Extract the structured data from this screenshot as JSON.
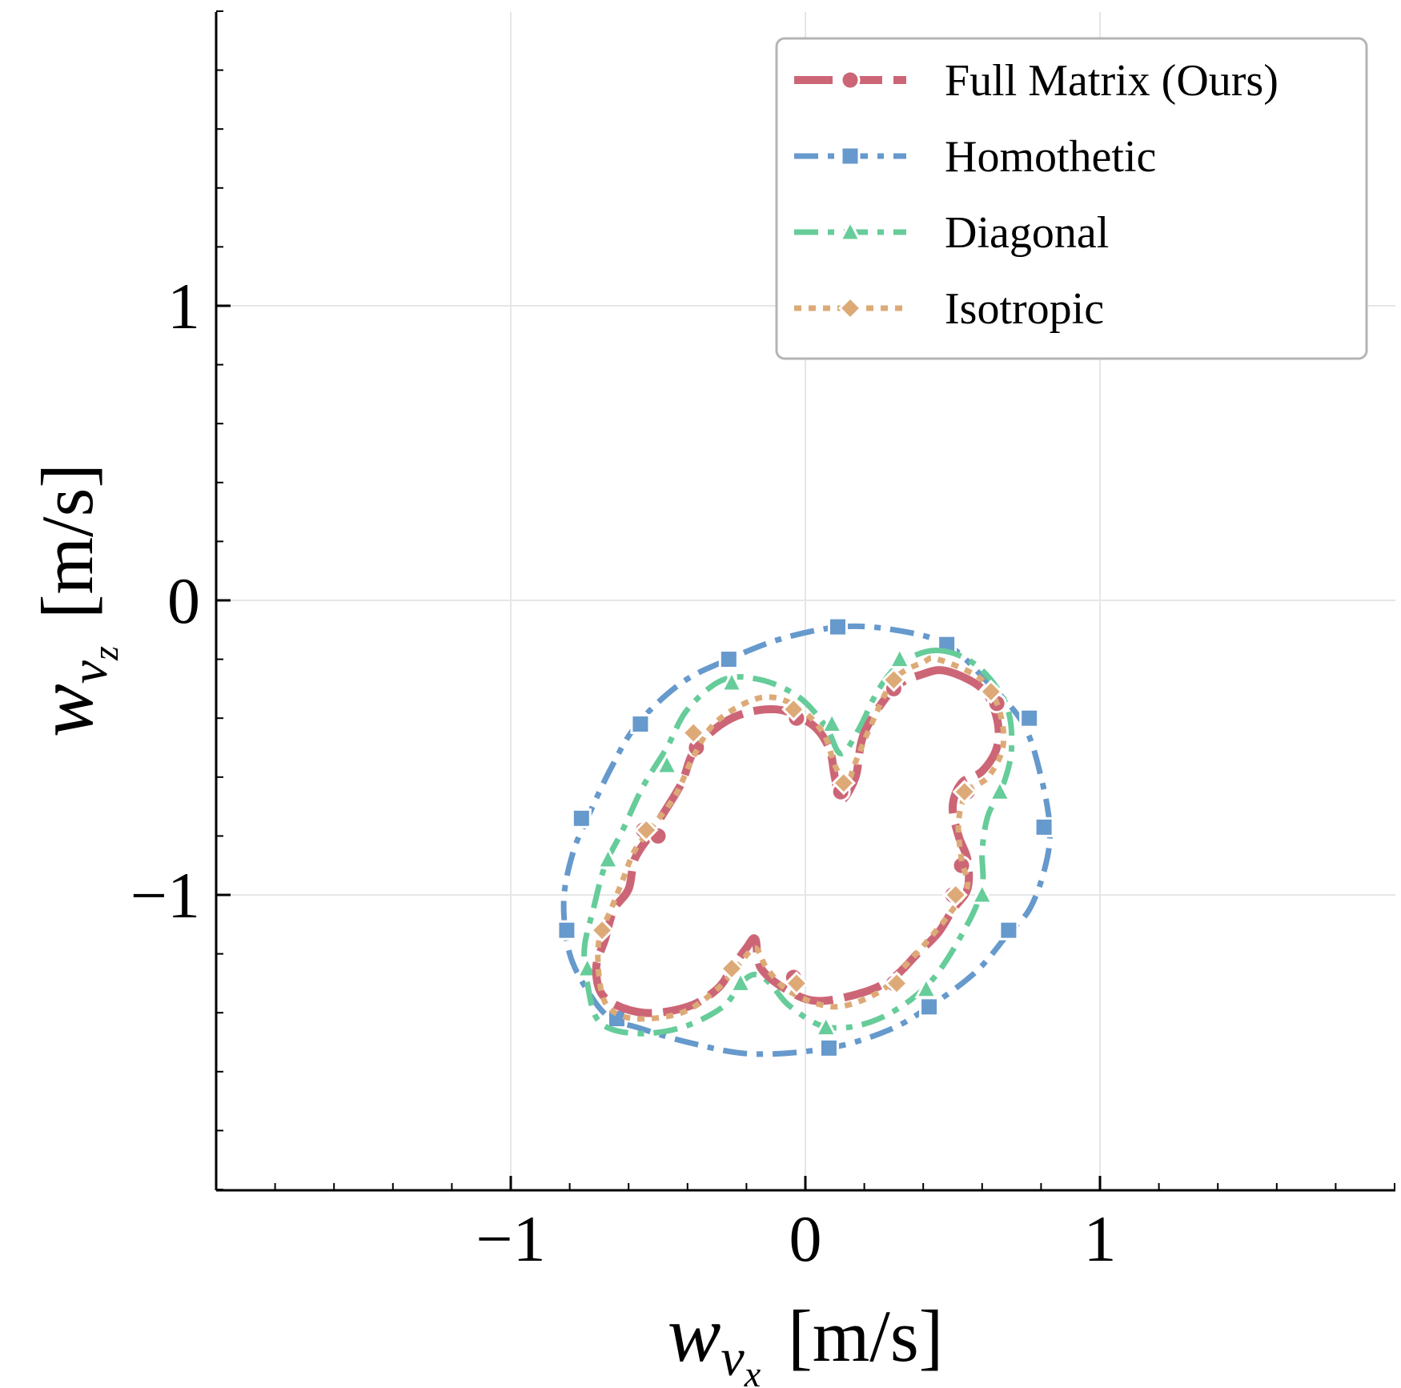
{
  "chart_data": {
    "type": "line",
    "title": "",
    "xlabel": {
      "symbol": "w",
      "sub": "v",
      "subsub": "x",
      "unit": "[m/s]"
    },
    "ylabel": {
      "symbol": "w",
      "sub": "v",
      "subsub": "z",
      "unit": "[m/s]"
    },
    "xlim": [
      -2.0,
      2.0
    ],
    "ylim": [
      -2.0,
      2.0
    ],
    "xticks": [
      -1,
      0,
      1
    ],
    "yticks": [
      -1,
      0,
      1
    ],
    "xtick_labels": [
      "−1",
      "0",
      "1"
    ],
    "ytick_labels": [
      "−1",
      "0",
      "1"
    ],
    "minor_step": 0.2,
    "grid": true,
    "legend_position": "top-right",
    "series": [
      {
        "name": "Full Matrix (Ours)",
        "color": "#cc6677",
        "dash": "long-dash",
        "marker": "circle",
        "points": [
          [
            0.48,
            -0.24
          ],
          [
            0.6,
            -0.3
          ],
          [
            0.65,
            -0.4
          ],
          [
            0.65,
            -0.5
          ],
          [
            0.6,
            -0.58
          ],
          [
            0.53,
            -0.62
          ],
          [
            0.5,
            -0.7
          ],
          [
            0.52,
            -0.8
          ],
          [
            0.55,
            -0.88
          ],
          [
            0.55,
            -0.98
          ],
          [
            0.5,
            -1.05
          ],
          [
            0.45,
            -1.13
          ],
          [
            0.38,
            -1.2
          ],
          [
            0.3,
            -1.28
          ],
          [
            0.2,
            -1.33
          ],
          [
            0.05,
            -1.36
          ],
          [
            -0.05,
            -1.33
          ],
          [
            -0.15,
            -1.25
          ],
          [
            -0.17,
            -1.15
          ],
          [
            -0.2,
            -1.18
          ],
          [
            -0.25,
            -1.25
          ],
          [
            -0.3,
            -1.32
          ],
          [
            -0.4,
            -1.38
          ],
          [
            -0.55,
            -1.4
          ],
          [
            -0.68,
            -1.35
          ],
          [
            -0.71,
            -1.25
          ],
          [
            -0.68,
            -1.15
          ],
          [
            -0.65,
            -1.05
          ],
          [
            -0.6,
            -0.98
          ],
          [
            -0.58,
            -0.88
          ],
          [
            -0.53,
            -0.8
          ],
          [
            -0.48,
            -0.72
          ],
          [
            -0.42,
            -0.62
          ],
          [
            -0.37,
            -0.5
          ],
          [
            -0.25,
            -0.4
          ],
          [
            -0.1,
            -0.37
          ],
          [
            0.02,
            -0.42
          ],
          [
            0.08,
            -0.5
          ],
          [
            0.1,
            -0.6
          ],
          [
            0.12,
            -0.68
          ],
          [
            0.17,
            -0.6
          ],
          [
            0.2,
            -0.45
          ],
          [
            0.3,
            -0.3
          ],
          [
            0.4,
            -0.25
          ],
          [
            0.48,
            -0.24
          ]
        ],
        "markers": [
          [
            -0.37,
            -0.5
          ],
          [
            -0.03,
            -0.4
          ],
          [
            0.12,
            -0.65
          ],
          [
            0.3,
            -0.3
          ],
          [
            0.65,
            -0.35
          ],
          [
            0.55,
            -0.65
          ],
          [
            0.53,
            -0.9
          ],
          [
            0.5,
            -1.0
          ],
          [
            0.3,
            -1.3
          ],
          [
            -0.04,
            -1.28
          ],
          [
            -0.25,
            -1.25
          ],
          [
            -0.5,
            -0.8
          ],
          [
            -0.55,
            -0.78
          ]
        ]
      },
      {
        "name": "Homothetic",
        "color": "#6699cc",
        "dash": "dash-dot",
        "marker": "square",
        "points": [
          [
            0.12,
            -0.09
          ],
          [
            0.3,
            -0.1
          ],
          [
            0.48,
            -0.15
          ],
          [
            0.62,
            -0.28
          ],
          [
            0.74,
            -0.42
          ],
          [
            0.8,
            -0.6
          ],
          [
            0.83,
            -0.78
          ],
          [
            0.81,
            -0.92
          ],
          [
            0.76,
            -1.05
          ],
          [
            0.69,
            -1.13
          ],
          [
            0.58,
            -1.26
          ],
          [
            0.42,
            -1.38
          ],
          [
            0.28,
            -1.46
          ],
          [
            0.08,
            -1.52
          ],
          [
            -0.18,
            -1.54
          ],
          [
            -0.4,
            -1.5
          ],
          [
            -0.57,
            -1.45
          ],
          [
            -0.66,
            -1.42
          ],
          [
            -0.73,
            -1.34
          ],
          [
            -0.8,
            -1.2
          ],
          [
            -0.82,
            -1.02
          ],
          [
            -0.79,
            -0.86
          ],
          [
            -0.74,
            -0.74
          ],
          [
            -0.66,
            -0.57
          ],
          [
            -0.57,
            -0.42
          ],
          [
            -0.42,
            -0.28
          ],
          [
            -0.26,
            -0.2
          ],
          [
            -0.08,
            -0.13
          ],
          [
            0.12,
            -0.09
          ]
        ],
        "markers": [
          [
            0.11,
            -0.09
          ],
          [
            0.48,
            -0.15
          ],
          [
            0.76,
            -0.4
          ],
          [
            0.81,
            -0.77
          ],
          [
            0.69,
            -1.12
          ],
          [
            0.42,
            -1.38
          ],
          [
            0.08,
            -1.52
          ],
          [
            -0.64,
            -1.42
          ],
          [
            -0.81,
            -1.12
          ],
          [
            -0.76,
            -0.74
          ],
          [
            -0.56,
            -0.42
          ],
          [
            -0.26,
            -0.2
          ]
        ]
      },
      {
        "name": "Diagonal",
        "color": "#66cc99",
        "dash": "dash-dot",
        "marker": "triangle",
        "points": [
          [
            0.45,
            -0.17
          ],
          [
            0.58,
            -0.22
          ],
          [
            0.68,
            -0.35
          ],
          [
            0.7,
            -0.5
          ],
          [
            0.67,
            -0.63
          ],
          [
            0.62,
            -0.73
          ],
          [
            0.6,
            -0.85
          ],
          [
            0.6,
            -0.97
          ],
          [
            0.55,
            -1.1
          ],
          [
            0.42,
            -1.3
          ],
          [
            0.25,
            -1.42
          ],
          [
            0.08,
            -1.45
          ],
          [
            -0.05,
            -1.38
          ],
          [
            -0.12,
            -1.3
          ],
          [
            -0.17,
            -1.27
          ],
          [
            -0.22,
            -1.3
          ],
          [
            -0.28,
            -1.38
          ],
          [
            -0.42,
            -1.45
          ],
          [
            -0.58,
            -1.47
          ],
          [
            -0.7,
            -1.43
          ],
          [
            -0.74,
            -1.3
          ],
          [
            -0.75,
            -1.18
          ],
          [
            -0.72,
            -1.05
          ],
          [
            -0.68,
            -0.9
          ],
          [
            -0.62,
            -0.78
          ],
          [
            -0.55,
            -0.63
          ],
          [
            -0.47,
            -0.5
          ],
          [
            -0.4,
            -0.37
          ],
          [
            -0.28,
            -0.27
          ],
          [
            -0.15,
            -0.27
          ],
          [
            -0.02,
            -0.33
          ],
          [
            0.07,
            -0.43
          ],
          [
            0.12,
            -0.52
          ],
          [
            0.18,
            -0.44
          ],
          [
            0.25,
            -0.3
          ],
          [
            0.33,
            -0.21
          ],
          [
            0.45,
            -0.17
          ]
        ],
        "markers": [
          [
            0.32,
            -0.2
          ],
          [
            0.65,
            -0.33
          ],
          [
            0.66,
            -0.65
          ],
          [
            0.6,
            -1.0
          ],
          [
            0.41,
            -1.32
          ],
          [
            0.07,
            -1.45
          ],
          [
            -0.22,
            -1.3
          ],
          [
            -0.74,
            -1.25
          ],
          [
            -0.67,
            -0.88
          ],
          [
            -0.47,
            -0.56
          ],
          [
            -0.25,
            -0.28
          ],
          [
            0.09,
            -0.42
          ]
        ]
      },
      {
        "name": "Isotropic",
        "color": "#ddaa77",
        "dash": "dotted",
        "marker": "diamond",
        "points": [
          [
            0.45,
            -0.2
          ],
          [
            0.6,
            -0.27
          ],
          [
            0.66,
            -0.38
          ],
          [
            0.67,
            -0.5
          ],
          [
            0.62,
            -0.6
          ],
          [
            0.55,
            -0.65
          ],
          [
            0.52,
            -0.75
          ],
          [
            0.53,
            -0.88
          ],
          [
            0.55,
            -0.97
          ],
          [
            0.5,
            -1.05
          ],
          [
            0.42,
            -1.15
          ],
          [
            0.33,
            -1.25
          ],
          [
            0.25,
            -1.33
          ],
          [
            0.1,
            -1.38
          ],
          [
            -0.05,
            -1.33
          ],
          [
            -0.13,
            -1.25
          ],
          [
            -0.17,
            -1.18
          ],
          [
            -0.22,
            -1.23
          ],
          [
            -0.3,
            -1.32
          ],
          [
            -0.42,
            -1.4
          ],
          [
            -0.58,
            -1.42
          ],
          [
            -0.67,
            -1.38
          ],
          [
            -0.7,
            -1.28
          ],
          [
            -0.7,
            -1.15
          ],
          [
            -0.66,
            -1.05
          ],
          [
            -0.62,
            -0.95
          ],
          [
            -0.58,
            -0.85
          ],
          [
            -0.52,
            -0.77
          ],
          [
            -0.44,
            -0.66
          ],
          [
            -0.38,
            -0.53
          ],
          [
            -0.3,
            -0.41
          ],
          [
            -0.15,
            -0.33
          ],
          [
            -0.03,
            -0.36
          ],
          [
            0.06,
            -0.45
          ],
          [
            0.1,
            -0.56
          ],
          [
            0.14,
            -0.62
          ],
          [
            0.17,
            -0.55
          ],
          [
            0.22,
            -0.43
          ],
          [
            0.3,
            -0.27
          ],
          [
            0.4,
            -0.21
          ],
          [
            0.45,
            -0.2
          ]
        ],
        "markers": [
          [
            0.3,
            -0.27
          ],
          [
            0.63,
            -0.31
          ],
          [
            0.54,
            -0.65
          ],
          [
            0.51,
            -1.0
          ],
          [
            0.31,
            -1.3
          ],
          [
            -0.03,
            -1.3
          ],
          [
            -0.25,
            -1.25
          ],
          [
            -0.69,
            -1.12
          ],
          [
            -0.54,
            -0.78
          ],
          [
            -0.38,
            -0.45
          ],
          [
            -0.04,
            -0.37
          ],
          [
            0.13,
            -0.62
          ]
        ]
      }
    ]
  }
}
